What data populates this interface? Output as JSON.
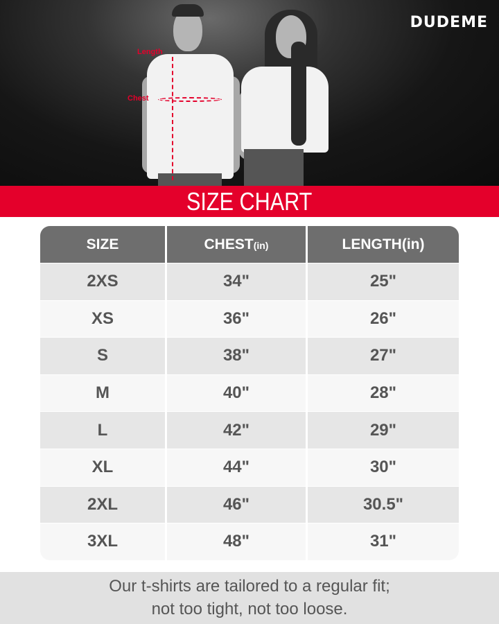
{
  "brand": {
    "logo": "DUDEME"
  },
  "hero": {
    "length_label": "Length",
    "chest_label": "Chest"
  },
  "title": "SIZE CHART",
  "table": {
    "headers": [
      {
        "main": "SIZE",
        "unit": ""
      },
      {
        "main": "CHEST",
        "unit": "(in)"
      },
      {
        "main": "LENGTH",
        "unit": "(in)"
      }
    ],
    "rows": [
      {
        "size": "2XS",
        "chest": "34\"",
        "length": "25\""
      },
      {
        "size": "XS",
        "chest": "36\"",
        "length": "26\""
      },
      {
        "size": "S",
        "chest": "38\"",
        "length": "27\""
      },
      {
        "size": "M",
        "chest": "40\"",
        "length": "28\""
      },
      {
        "size": "L",
        "chest": "42\"",
        "length": "29\""
      },
      {
        "size": "XL",
        "chest": "44\"",
        "length": "30\""
      },
      {
        "size": "2XL",
        "chest": "46\"",
        "length": "30.5\""
      },
      {
        "size": "3XL",
        "chest": "48\"",
        "length": "31\""
      }
    ]
  },
  "footer": {
    "line1": "Our t-shirts are tailored to a regular fit;",
    "line2": "not too tight, not too loose."
  },
  "colors": {
    "accent": "#e4002b",
    "header": "#6e6e6e",
    "text": "#555555"
  }
}
